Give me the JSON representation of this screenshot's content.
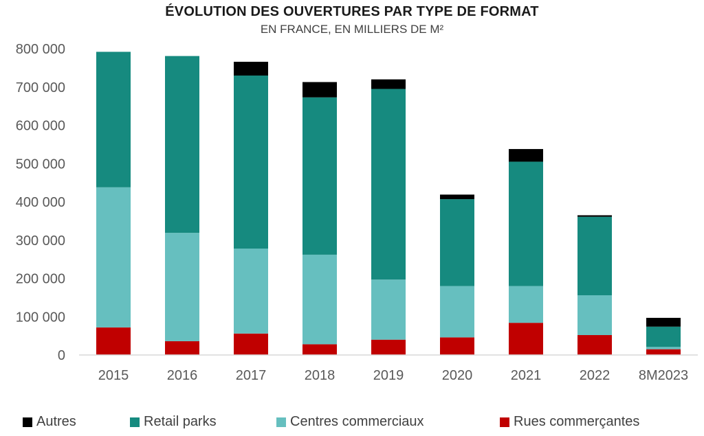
{
  "chart_data": {
    "type": "bar",
    "stacked": true,
    "title": "ÉVOLUTION DES OUVERTURES PAR TYPE DE FORMAT",
    "subtitle": "EN FRANCE, EN MILLIERS DE M²",
    "categories": [
      "2015",
      "2016",
      "2017",
      "2018",
      "2019",
      "2020",
      "2021",
      "2022",
      "8M2023"
    ],
    "ylim": [
      0,
      800000
    ],
    "yticks": [
      0,
      100000,
      200000,
      300000,
      400000,
      500000,
      600000,
      700000,
      800000
    ],
    "ytick_labels": [
      "0",
      "100 000",
      "200 000",
      "300 000",
      "400 000",
      "500 000",
      "600 000",
      "700 000",
      "800 000"
    ],
    "grid": false,
    "legend_position": "bottom",
    "series": [
      {
        "name": "Rues commerçantes",
        "color": "#c00000",
        "values": [
          72000,
          36000,
          56000,
          28000,
          40000,
          46000,
          84000,
          52000,
          15000
        ]
      },
      {
        "name": "Centres commerciaux",
        "color": "#66bfbf",
        "values": [
          366000,
          283000,
          222000,
          234000,
          157000,
          134000,
          96000,
          104000,
          6000
        ]
      },
      {
        "name": "Retail parks",
        "color": "#168a7f",
        "values": [
          354000,
          462000,
          452000,
          411000,
          498000,
          227000,
          325000,
          205000,
          53000
        ]
      },
      {
        "name": "Autres",
        "color": "#000000",
        "values": [
          0,
          0,
          36000,
          40000,
          25000,
          12000,
          33000,
          4000,
          23000
        ]
      }
    ],
    "legend_order": [
      "Autres",
      "Retail parks",
      "Centres commerciaux",
      "Rues commerçantes"
    ]
  }
}
